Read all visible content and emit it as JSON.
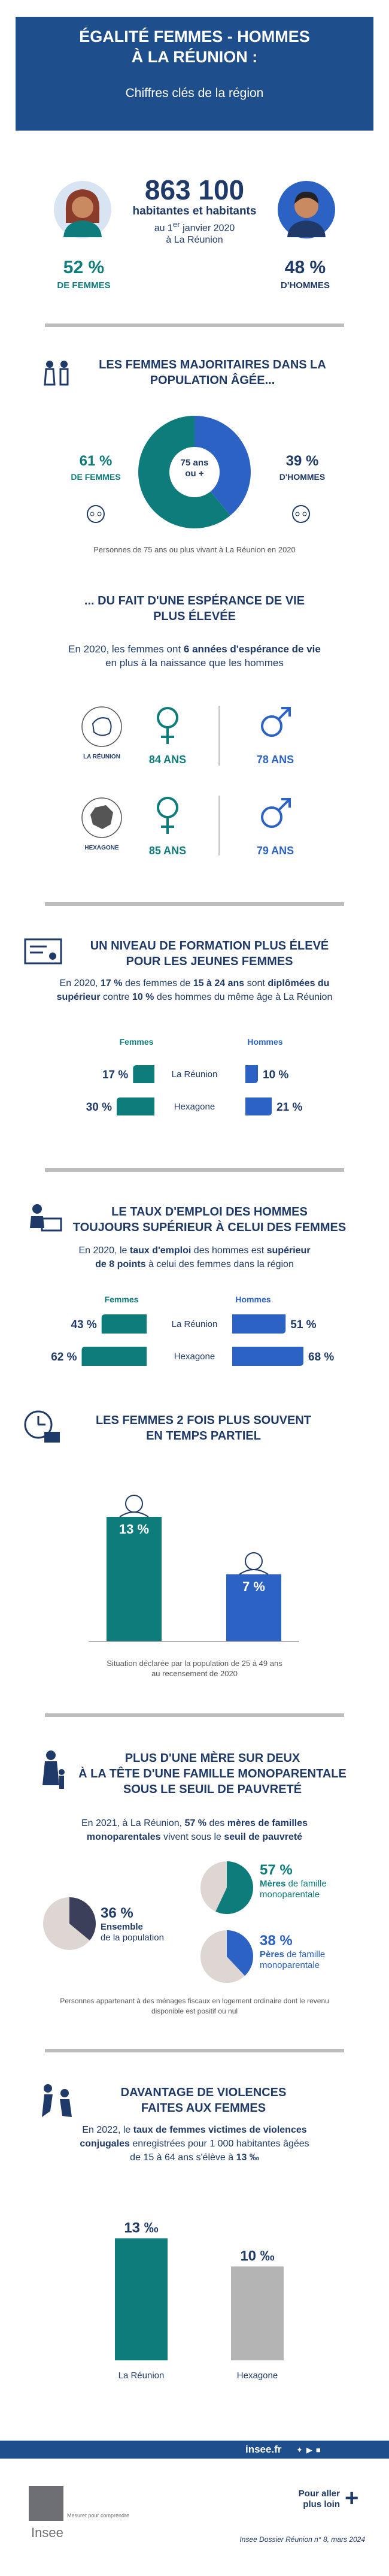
{
  "header": {
    "title_line1": "ÉGALITÉ FEMMES - HOMMES",
    "title_line2": "À LA RÉUNION :",
    "subtitle": "Chiffres clés de la région"
  },
  "population": {
    "total": "863 100",
    "label": "habitantes et habitants",
    "date_prefix": "au 1",
    "date_sup": "er",
    "date_suffix": " janvier 2020",
    "place": "à La Réunion",
    "women_pct": "52 %",
    "women_label": "DE FEMMES",
    "men_pct": "48 %",
    "men_label": "D'HOMMES"
  },
  "section_age": {
    "title_line1": "LES FEMMES MAJORITAIRES DANS LA",
    "title_line2": "POPULATION ÂGÉE...",
    "center_line1": "75 ans",
    "center_line2": "ou +",
    "note": "Personnes de 75 ans ou plus vivant à La Réunion en 2020",
    "women_label": "DE FEMMES",
    "men_label": "D'HOMMES"
  },
  "section_life": {
    "title_line1": "... DU FAIT D'UNE ESPÉRANCE DE VIE",
    "title_line2": "PLUS ÉLEVÉE",
    "para_line1_a": "En 2020, les femmes ont ",
    "para_line1_b": "6 années d'espérance de vie",
    "para_line2": "en plus à la naissance que les hommes",
    "region_label": "LA RÉUNION",
    "hexagone_label": "HEXAGONE"
  },
  "section_education": {
    "title_line1": "UN NIVEAU DE FORMATION PLUS ÉLEVÉ",
    "title_line2": "POUR LES JEUNES FEMMES",
    "para_line1_a": "En 2020, ",
    "para_line1_b": "17 %",
    "para_line1_c": " des femmes de ",
    "para_line1_d": "15 à 24 ans",
    "para_line1_e": " sont ",
    "para_line1_f": "diplômées du",
    "para_line2_a": "supérieur",
    "para_line2_b": " contre ",
    "para_line2_c": "10 %",
    "para_line2_d": " des hommes du même âge à La Réunion"
  },
  "section_employment": {
    "title_line1": "LE TAUX D'EMPLOI DES HOMMES",
    "title_line2": "TOUJOURS SUPÉRIEUR À CELUI DES FEMMES",
    "para_line1_a": "En 2020, le ",
    "para_line1_b": "taux d'emploi",
    "para_line1_c": " des hommes est ",
    "para_line1_d": "supérieur",
    "para_line2_a": "de 8 points",
    "para_line2_b": " à celui des femmes dans la région"
  },
  "section_parttime": {
    "title_line1": "LES FEMMES 2 FOIS PLUS SOUVENT",
    "title_line2": "EN TEMPS PARTIEL",
    "note_line1": "Situation déclarée par la population de 25 à 49 ans",
    "note_line2": "au recensement de 2020"
  },
  "section_single": {
    "title_line1": "PLUS D'UNE MÈRE SUR DEUX",
    "title_line2": "À LA TÊTE D'UNE FAMILLE MONOPARENTALE",
    "title_line3": "SOUS LE SEUIL DE PAUVRETÉ",
    "para_line1_a": "En 2021, à La Réunion, ",
    "para_line1_b": "57 %",
    "para_line1_c": " des ",
    "para_line1_d": "mères de familles",
    "para_line2_a": "monoparentales",
    "para_line2_b": " vivent sous le ",
    "para_line2_c": "seuil de pauvreté",
    "note_line1": "Personnes appartenant à des ménages fiscaux en logement ordinaire dont le revenu",
    "note_line2": "disponible est positif ou nul"
  },
  "section_violence": {
    "title_line1": "DAVANTAGE DE VIOLENCES",
    "title_line2": "FAITES AUX FEMMES",
    "para_line1_a": "En 2022, le ",
    "para_line1_b": "taux de femmes victimes de violences",
    "para_line2_a": "conjugales",
    "para_line2_b": " enregistrées pour 1 000 habitantes âgées",
    "para_line3_a": "de 15 à 64 ans s'élève à ",
    "para_line3_b": "13 ‰"
  },
  "footer": {
    "site": "insee.fr",
    "logo": "Insee",
    "tagline": "Mesurer pour comprendre",
    "more_line1": "Pour aller",
    "more_line2": "plus loin",
    "source": "Insee Dossier Réunion n° 8, mars 2024"
  },
  "colors": {
    "women": "#0e7c7b",
    "men": "#2b62c4",
    "navy": "#1f3a68",
    "header": "#1f4e8c",
    "grey": "#b9b9b9"
  },
  "chart_data": [
    {
      "type": "pie",
      "title": "Personnes de 75 ans ou plus vivant à La Réunion en 2020",
      "categories": [
        "Femmes",
        "Hommes"
      ],
      "values": [
        61,
        39
      ],
      "labels": [
        "61 %",
        "39 %"
      ]
    },
    {
      "type": "table",
      "title": "Espérance de vie",
      "rows": [
        "La Réunion",
        "Hexagone"
      ],
      "columns": [
        "Femmes",
        "Hommes"
      ],
      "values": [
        [
          84,
          78
        ],
        [
          85,
          79
        ]
      ],
      "labels": [
        [
          "84  ANS",
          "78  ANS"
        ],
        [
          "85  ANS",
          "79  ANS"
        ]
      ]
    },
    {
      "type": "bar",
      "orientation": "horizontal",
      "categories": [
        "La Réunion",
        "Hexagone"
      ],
      "series": [
        {
          "name": "Femmes",
          "values": [
            17,
            30
          ],
          "labels": [
            "17 %",
            "30 %"
          ]
        },
        {
          "name": "Hommes",
          "values": [
            10,
            21
          ],
          "labels": [
            "10 %",
            "21 %"
          ]
        }
      ],
      "xlim": [
        0,
        80
      ]
    },
    {
      "type": "bar",
      "orientation": "horizontal",
      "categories": [
        "La Réunion",
        "Hexagone"
      ],
      "series": [
        {
          "name": "Femmes",
          "values": [
            43,
            62
          ],
          "labels": [
            "43 %",
            "62 %"
          ]
        },
        {
          "name": "Hommes",
          "values": [
            51,
            68
          ],
          "labels": [
            "51 %",
            "68 %"
          ]
        }
      ],
      "xlim": [
        0,
        200
      ]
    },
    {
      "type": "bar",
      "categories": [
        "Femmes",
        "Hommes"
      ],
      "values": [
        13,
        7
      ],
      "labels": [
        "13 %",
        "7 %"
      ],
      "ylim": [
        0,
        15
      ]
    },
    {
      "type": "pie",
      "title": "Part sous le seuil de pauvreté",
      "categories": [
        "Ensemble de la population",
        "Mères de famille monoparentale",
        "Pères de famille monoparentale"
      ],
      "values": [
        36,
        57,
        38
      ],
      "labels": [
        "36 %",
        "57 %",
        "38 %"
      ]
    },
    {
      "type": "bar",
      "categories": [
        "La Réunion",
        "Hexagone"
      ],
      "values": [
        13,
        10
      ],
      "labels": [
        "13 ‰",
        "10 ‰"
      ],
      "ylim": [
        0,
        15
      ]
    }
  ]
}
